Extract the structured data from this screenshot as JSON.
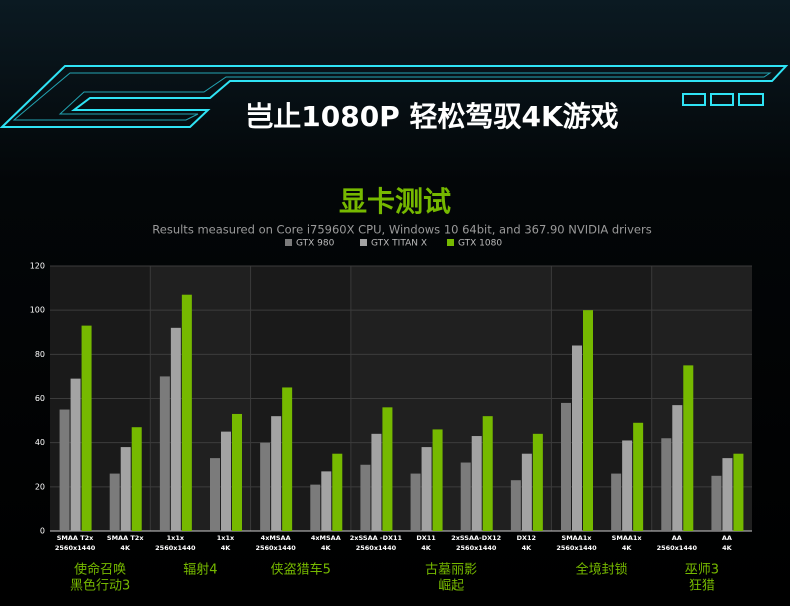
{
  "header": {
    "title": "岂止1080P 轻松驾驭4K游戏"
  },
  "chart_data": {
    "type": "bar",
    "title": "显卡测试",
    "subtitle": "Results measured on Core i75960X CPU, Windows 10 64bit, and 367.90 NVIDIA drivers",
    "groups": [
      {
        "label": [
          "使命召唤",
          "黑色行动3"
        ],
        "categories": [
          [
            "SMAA T2x",
            "2560x1440"
          ],
          [
            "SMAA T2x",
            "4K"
          ]
        ]
      },
      {
        "label": [
          "辐射4"
        ],
        "categories": [
          [
            "1x1x",
            "2560x1440"
          ],
          [
            "1x1x",
            "4K"
          ]
        ]
      },
      {
        "label": [
          "侠盗猎车5"
        ],
        "categories": [
          [
            "4xMSAA",
            "2560x1440"
          ],
          [
            "4xMSAA",
            "4K"
          ]
        ]
      },
      {
        "label": [
          "古墓丽影",
          "崛起"
        ],
        "categories": [
          [
            "2xSSAA -DX11",
            "2560x1440"
          ],
          [
            "DX11",
            "4K"
          ],
          [
            "2xSSAA-DX12",
            "2560x1440"
          ],
          [
            "DX12",
            "4K"
          ]
        ]
      },
      {
        "label": [
          "全境封锁"
        ],
        "categories": [
          [
            "SMAA1x",
            "2560x1440"
          ],
          [
            "SMAA1x",
            "4K"
          ]
        ]
      },
      {
        "label": [
          "巫师3",
          "狂猎"
        ],
        "categories": [
          [
            "AA",
            "2560x1440"
          ],
          [
            "AA",
            "4K"
          ]
        ]
      }
    ],
    "series": [
      {
        "name": "GTX 980",
        "color": "#7b7b7b",
        "values": [
          55,
          26,
          70,
          33,
          40,
          21,
          30,
          26,
          31,
          23,
          58,
          26,
          42,
          25
        ]
      },
      {
        "name": "GTX TITAN X",
        "color": "#a3a3a3",
        "values": [
          69,
          38,
          92,
          45,
          52,
          27,
          44,
          38,
          43,
          35,
          84,
          41,
          57,
          33
        ]
      },
      {
        "name": "GTX 1080",
        "color": "#76b900",
        "values": [
          93,
          47,
          107,
          53,
          65,
          35,
          56,
          46,
          52,
          44,
          100,
          49,
          75,
          35
        ]
      }
    ],
    "ylim": [
      0,
      120
    ],
    "yticks": [
      0,
      20,
      40,
      60,
      80,
      100,
      120
    ],
    "grid": true
  }
}
